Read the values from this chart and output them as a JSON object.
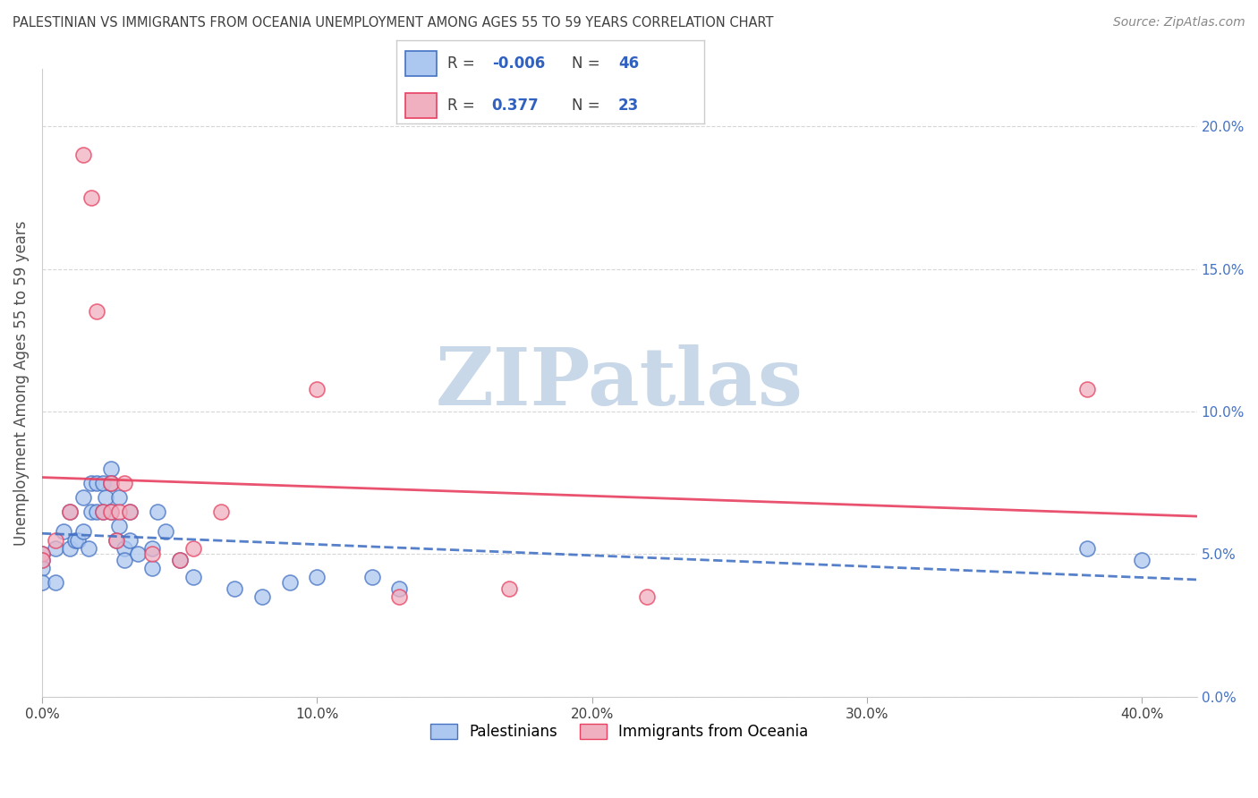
{
  "title": "PALESTINIAN VS IMMIGRANTS FROM OCEANIA UNEMPLOYMENT AMONG AGES 55 TO 59 YEARS CORRELATION CHART",
  "source": "Source: ZipAtlas.com",
  "ylabel": "Unemployment Among Ages 55 to 59 years",
  "xlim": [
    0.0,
    0.42
  ],
  "ylim": [
    0.0,
    0.22
  ],
  "xlabel_vals": [
    0.0,
    0.1,
    0.2,
    0.3,
    0.4
  ],
  "xlabel_ticks": [
    "0.0%",
    "10.0%",
    "20.0%",
    "30.0%",
    "40.0%"
  ],
  "ylabel_vals": [
    0.0,
    0.05,
    0.1,
    0.15,
    0.2
  ],
  "ylabel_ticks": [
    "0.0%",
    "5.0%",
    "10.0%",
    "15.0%",
    "20.0%"
  ],
  "palestinians_x": [
    0.0,
    0.0,
    0.0,
    0.0,
    0.005,
    0.005,
    0.008,
    0.01,
    0.01,
    0.012,
    0.013,
    0.015,
    0.015,
    0.017,
    0.018,
    0.018,
    0.02,
    0.02,
    0.022,
    0.022,
    0.023,
    0.025,
    0.025,
    0.025,
    0.027,
    0.028,
    0.028,
    0.03,
    0.03,
    0.032,
    0.032,
    0.035,
    0.04,
    0.04,
    0.042,
    0.045,
    0.05,
    0.055,
    0.07,
    0.08,
    0.09,
    0.1,
    0.12,
    0.13,
    0.38,
    0.4
  ],
  "palestinians_y": [
    0.05,
    0.048,
    0.045,
    0.04,
    0.052,
    0.04,
    0.058,
    0.065,
    0.052,
    0.055,
    0.055,
    0.07,
    0.058,
    0.052,
    0.075,
    0.065,
    0.075,
    0.065,
    0.075,
    0.065,
    0.07,
    0.08,
    0.075,
    0.065,
    0.055,
    0.07,
    0.06,
    0.052,
    0.048,
    0.065,
    0.055,
    0.05,
    0.052,
    0.045,
    0.065,
    0.058,
    0.048,
    0.042,
    0.038,
    0.035,
    0.04,
    0.042,
    0.042,
    0.038,
    0.052,
    0.048
  ],
  "oceania_x": [
    0.0,
    0.0,
    0.005,
    0.01,
    0.015,
    0.018,
    0.02,
    0.022,
    0.025,
    0.025,
    0.027,
    0.028,
    0.03,
    0.032,
    0.04,
    0.05,
    0.055,
    0.065,
    0.1,
    0.13,
    0.17,
    0.22,
    0.38
  ],
  "oceania_y": [
    0.05,
    0.048,
    0.055,
    0.065,
    0.19,
    0.175,
    0.135,
    0.065,
    0.075,
    0.065,
    0.055,
    0.065,
    0.075,
    0.065,
    0.05,
    0.048,
    0.052,
    0.065,
    0.108,
    0.035,
    0.038,
    0.035,
    0.108
  ],
  "r_palestinians": -0.006,
  "n_palestinians": 46,
  "r_oceania": 0.377,
  "n_oceania": 23,
  "color_palestinians": "#adc8f0",
  "color_oceania": "#f0b0c0",
  "line_color_palestinians": "#4472c4",
  "line_color_oceania": "#e84060",
  "watermark_text": "ZIPatlas",
  "watermark_color": "#c8d8e8",
  "background_color": "#ffffff",
  "grid_color": "#cccccc",
  "title_color": "#404040",
  "legend_val_color": "#3060c0",
  "legend_label_color": "#404040"
}
